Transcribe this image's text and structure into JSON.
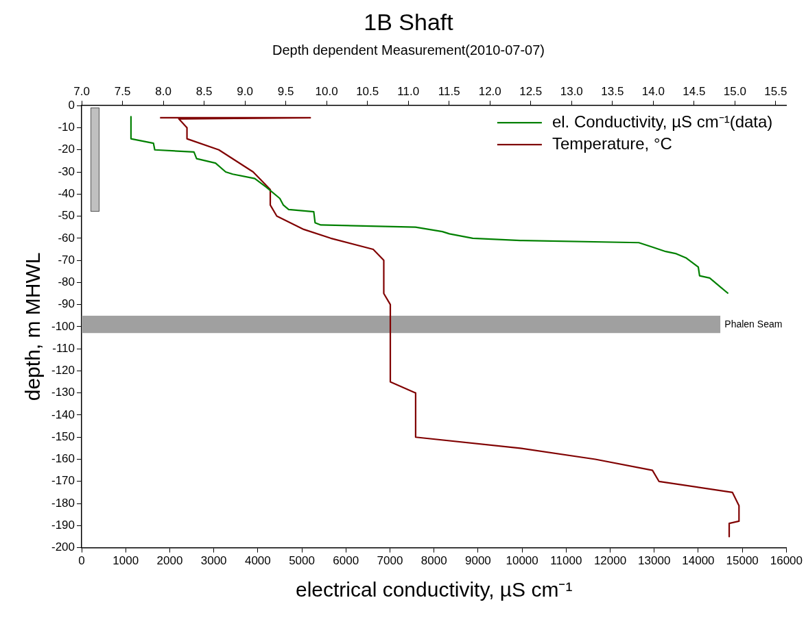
{
  "chart_data": {
    "type": "line",
    "title": "1B Shaft",
    "subtitle": "Depth dependent Measurement(2010-07-07)",
    "xlabel": "electrical conductivity, µS cm⁻¹",
    "ylabel": "depth, m MHWL",
    "xlim": [
      0,
      16000
    ],
    "xticks": [
      0,
      1000,
      2000,
      3000,
      4000,
      5000,
      6000,
      7000,
      8000,
      9000,
      10000,
      11000,
      12000,
      13000,
      14000,
      15000,
      16000
    ],
    "x2lim": [
      7,
      15.63
    ],
    "x2ticks": [
      {
        "value": 7,
        "label": "7.0"
      },
      {
        "value": 7.5,
        "label": "7.5"
      },
      {
        "value": 8,
        "label": "8.0"
      },
      {
        "value": 8.5,
        "label": "8.5"
      },
      {
        "value": 9,
        "label": "9.0"
      },
      {
        "value": 9.5,
        "label": "9.5"
      },
      {
        "value": 10,
        "label": "10.0"
      },
      {
        "value": 10.5,
        "label": "10.5"
      },
      {
        "value": 11,
        "label": "11.0"
      },
      {
        "value": 11.5,
        "label": "11.5"
      },
      {
        "value": 12,
        "label": "12.0"
      },
      {
        "value": 12.5,
        "label": "12.5"
      },
      {
        "value": 13,
        "label": "13.0"
      },
      {
        "value": 13.5,
        "label": "13.5"
      },
      {
        "value": 14,
        "label": "14.0"
      },
      {
        "value": 14.5,
        "label": "14.5"
      },
      {
        "value": 15,
        "label": "15.0"
      },
      {
        "value": 15.5,
        "label": "15.5"
      }
    ],
    "ylim": [
      -200,
      0
    ],
    "yticks": [
      0,
      -10,
      -20,
      -30,
      -40,
      -50,
      -60,
      -70,
      -80,
      -90,
      -100,
      -110,
      -120,
      -130,
      -140,
      -150,
      -160,
      -170,
      -180,
      -190,
      -200
    ],
    "legend": "top right",
    "grid": false,
    "marker": "none",
    "line_style": "solid",
    "bands": [
      {
        "axis": "y",
        "from": -95,
        "to": -103,
        "label": "Phalen Seam",
        "color": "#a0a0a0"
      }
    ],
    "series": [
      {
        "name": "el. Conductivity, µS cm⁻¹(data)",
        "color": "#008000",
        "x": [
          1120,
          1120,
          1630,
          1660,
          2550,
          2610,
          3040,
          3270,
          3430,
          3930,
          4200,
          4500,
          4580,
          4700,
          5270,
          5300,
          5430,
          7580,
          8190,
          8350,
          8880,
          9960,
          12650,
          12960,
          13260,
          13500,
          13730,
          14000,
          14030,
          14260,
          14500,
          14680
        ],
        "values": [
          -5,
          -15,
          -17,
          -20,
          -21,
          -24,
          -26,
          -30,
          -31,
          -33,
          -37,
          -42,
          -45,
          -47,
          -48,
          -53,
          -54,
          -55,
          -57,
          -58,
          -60,
          -61,
          -62,
          -64,
          -66,
          -67,
          -69,
          -73,
          -77,
          -78,
          -82,
          -85
        ]
      },
      {
        "name": "Temperature, °C",
        "color": "#800000",
        "axis": "x2",
        "x": [
          7.96,
          9.8,
          8.19,
          8.29,
          8.29,
          8.68,
          9.1,
          9.31,
          9.31,
          9.39,
          9.72,
          10.05,
          10.57,
          10.7,
          10.7,
          10.78,
          10.78,
          11.09,
          11.09,
          12.37,
          13.29,
          13.99,
          14.07,
          14.97,
          15.05,
          15.05,
          14.93,
          14.93
        ],
        "values": [
          -5.5,
          -5.5,
          -6,
          -10,
          -15,
          -20,
          -30,
          -38,
          -45,
          -50,
          -56,
          -60,
          -65,
          -70,
          -85,
          -90,
          -125,
          -130,
          -150,
          -155,
          -160,
          -165,
          -170,
          -175,
          -181,
          -188,
          -189,
          -195
        ]
      }
    ]
  }
}
